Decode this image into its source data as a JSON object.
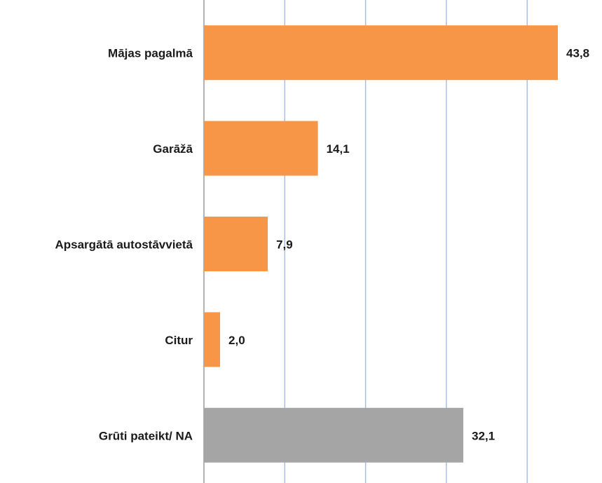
{
  "chart_data": {
    "type": "barh",
    "categories": [
      "Mājas pagalmā",
      "Garāžā",
      "Apsargātā autostāvvietā",
      "Citur",
      "Grūti pateikt/ NA"
    ],
    "values": [
      43.8,
      14.1,
      7.9,
      2.0,
      32.1
    ],
    "value_labels": [
      "43,8",
      "14,1",
      "7,9",
      "2,0",
      "32,1"
    ],
    "colors": [
      "#f79646",
      "#f79646",
      "#f79646",
      "#f79646",
      "#a5a5a5"
    ],
    "xlim": [
      0,
      49
    ],
    "xticks": [
      0,
      10,
      20,
      30,
      40
    ],
    "grid": true
  }
}
